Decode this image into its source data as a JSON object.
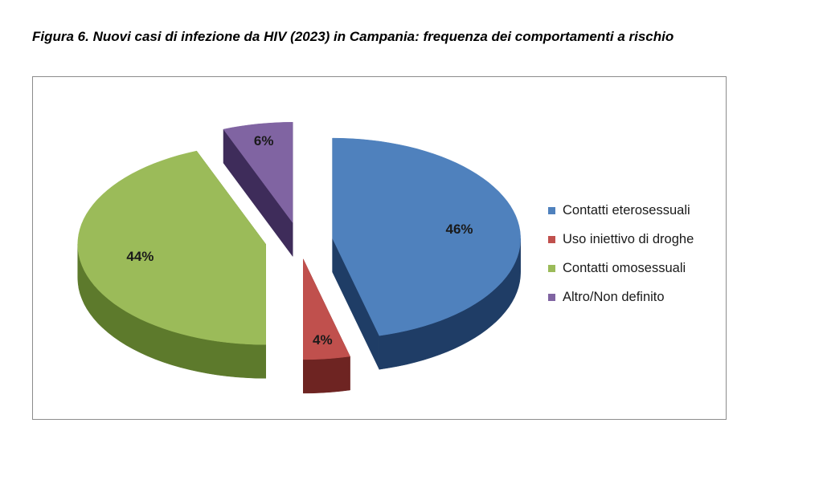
{
  "figure": {
    "title": "Figura 6.  Nuovi casi di infezione da HIV (2023) in Campania: frequenza dei comportamenti a rischio"
  },
  "chart_data": {
    "type": "pie",
    "title": "",
    "exploded": true,
    "three_d": true,
    "legend_position": "right",
    "categories": [
      "Contatti eterosessuali",
      "Uso iniettivo di droghe",
      "Contatti omosessuali",
      "Altro/Non definito"
    ],
    "values": [
      46,
      4,
      44,
      6
    ],
    "labels": [
      "46%",
      "4%",
      "44%",
      "6%"
    ],
    "colors": [
      "#4f81bd",
      "#c0504d",
      "#9bbb59",
      "#8064a2"
    ],
    "side_colors": [
      "#1f3d66",
      "#6e2422",
      "#5d7a2c",
      "#3e2c5a"
    ]
  }
}
